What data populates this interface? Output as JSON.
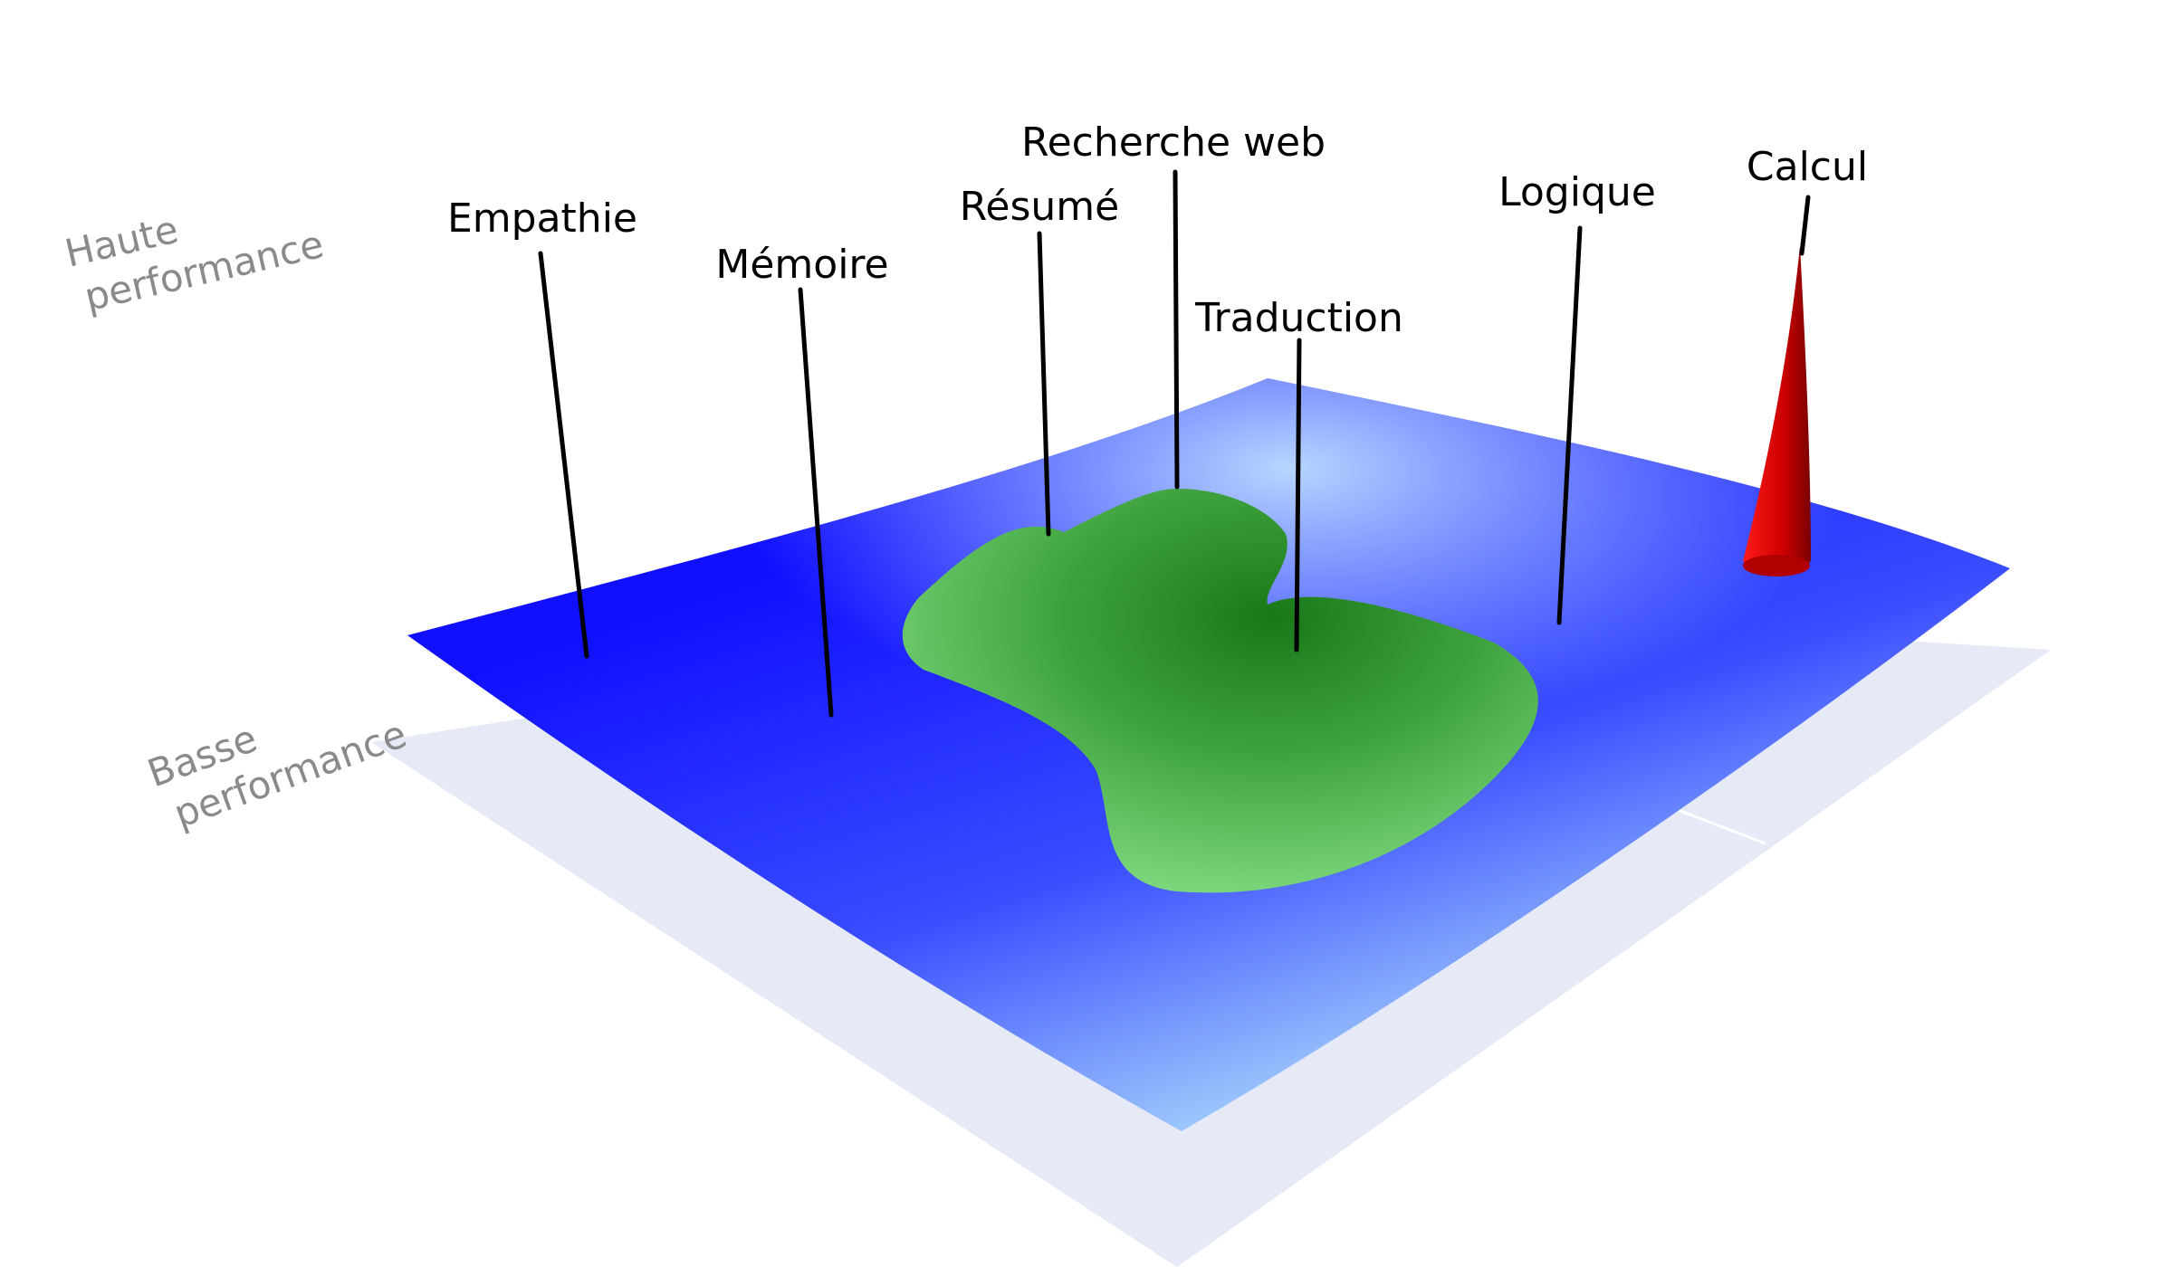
{
  "axis_labels": {
    "high": [
      "Haute",
      "performance"
    ],
    "low": [
      "Basse",
      "performance"
    ]
  },
  "capabilities": [
    {
      "key": "empathie",
      "label": "Empathie"
    },
    {
      "key": "memoire",
      "label": "Mémoire"
    },
    {
      "key": "resume",
      "label": "Résumé"
    },
    {
      "key": "recherche",
      "label": "Recherche web"
    },
    {
      "key": "traduction",
      "label": "Traduction"
    },
    {
      "key": "logique",
      "label": "Logique"
    },
    {
      "key": "calcul",
      "label": "Calcul"
    }
  ],
  "colors": {
    "surface_deep": "#1414ff",
    "surface_light": "#a8d4fb",
    "plateau_dark": "#1a7a1a",
    "plateau_light": "#7fdc7f",
    "spike": "#d40000",
    "spike_dark": "#8a0000",
    "floor": "#e6eaf6"
  }
}
